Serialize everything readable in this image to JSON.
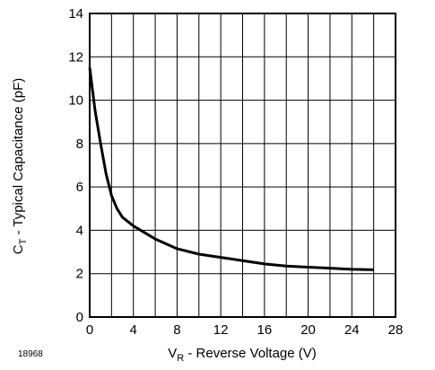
{
  "chart_data": {
    "type": "line",
    "title": "",
    "xlabel": {
      "prefix": "V",
      "sub": "R",
      "suffix": " - Reverse Voltage (V)"
    },
    "ylabel": {
      "prefix": "C",
      "sub": "T",
      "suffix": " - Typical Capacitance (pF)"
    },
    "xlim": [
      0,
      28
    ],
    "ylim": [
      0,
      14
    ],
    "x_ticks": [
      0,
      4,
      8,
      12,
      16,
      20,
      24,
      28
    ],
    "x_tick_labels": [
      "0",
      "4",
      "8",
      "12",
      "16",
      "20",
      "24",
      "28"
    ],
    "y_ticks": [
      0,
      2,
      4,
      6,
      8,
      10,
      12,
      14
    ],
    "y_tick_labels": [
      "0",
      "2",
      "4",
      "6",
      "8",
      "10",
      "12",
      "14"
    ],
    "grid": {
      "x_minor_step": 2,
      "y_step": 2,
      "on": true
    },
    "series": [
      {
        "x": [
          0,
          0.5,
          1,
          1.5,
          2,
          2.5,
          3,
          4,
          5,
          6,
          8,
          10,
          12,
          14,
          16,
          18,
          20,
          22,
          24,
          26
        ],
        "y": [
          11.5,
          9.5,
          8.0,
          6.6,
          5.6,
          5.0,
          4.6,
          4.2,
          3.9,
          3.6,
          3.15,
          2.9,
          2.75,
          2.6,
          2.45,
          2.35,
          2.3,
          2.25,
          2.2,
          2.18
        ]
      }
    ]
  },
  "figure_id": "18968",
  "colors": {
    "line": "#000000",
    "grid": "#000000",
    "background": "#ffffff"
  }
}
